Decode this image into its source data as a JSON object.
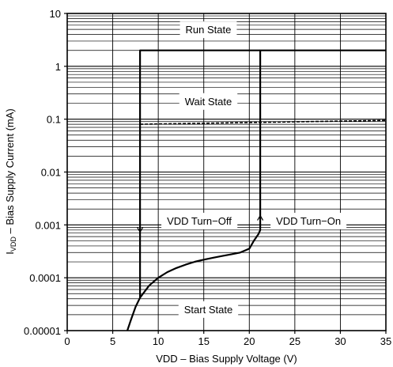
{
  "chart_data": {
    "type": "line",
    "title": "",
    "xlabel": "VDD – Bias Supply Voltage (V)",
    "ylabel_main": "I",
    "ylabel_sub": "VDD",
    "ylabel_rest": " – Bias Supply Current (mA)",
    "xlim": [
      0,
      35
    ],
    "ylim": [
      1e-05,
      10
    ],
    "yscale": "log",
    "grid": true,
    "x_ticks": [
      0,
      5,
      10,
      15,
      20,
      25,
      30,
      35
    ],
    "x_tick_labels": [
      "0",
      "5",
      "10",
      "15",
      "20",
      "25",
      "30",
      "35"
    ],
    "y_ticks": [
      1e-05,
      0.0001,
      0.001,
      0.01,
      0.1,
      1,
      10
    ],
    "y_tick_labels": [
      "0.00001",
      "0.0001",
      "0.001",
      "0.01",
      "0.1",
      "1",
      "10"
    ],
    "series": [
      {
        "style": "solid",
        "x": [
          6.6,
          7.0,
          7.5,
          8.0,
          9,
          10,
          11,
          12,
          13,
          14,
          15,
          16,
          17,
          18,
          19,
          20,
          20.5,
          21.0,
          21.2,
          21.2,
          35
        ],
        "y": [
          1e-05,
          1.6e-05,
          2.8e-05,
          4.2e-05,
          7.1e-05,
          0.0001,
          0.000128,
          0.000153,
          0.000177,
          0.0002,
          0.00022,
          0.000239,
          0.000258,
          0.000277,
          0.0003,
          0.000355,
          0.0005,
          0.00067,
          0.0008,
          2,
          2
        ]
      },
      {
        "style": "solid",
        "x": [
          8.0,
          8.0,
          21.2
        ],
        "y": [
          4.2e-05,
          2,
          2
        ]
      },
      {
        "style": "dashed",
        "x": [
          8.0,
          35
        ],
        "y": [
          0.08,
          0.095
        ]
      }
    ],
    "annotations": [
      {
        "text": "Run State",
        "x": 15.5,
        "y": 5
      },
      {
        "text": "Wait State",
        "x": 15.5,
        "y": 0.22
      },
      {
        "text": "VDD Turn−Off",
        "x": 14.5,
        "y": 0.0012
      },
      {
        "text": "VDD Turn−On",
        "x": 26.5,
        "y": 0.0012
      },
      {
        "text": "Start State",
        "x": 15.5,
        "y": 2.55e-05
      }
    ],
    "arrows": [
      {
        "direction": "down",
        "x": 8.0,
        "y_from": 0.0015,
        "y_to": 0.00073
      },
      {
        "direction": "up",
        "x": 21.2,
        "y_from": 0.00075,
        "y_to": 0.0015
      }
    ]
  }
}
